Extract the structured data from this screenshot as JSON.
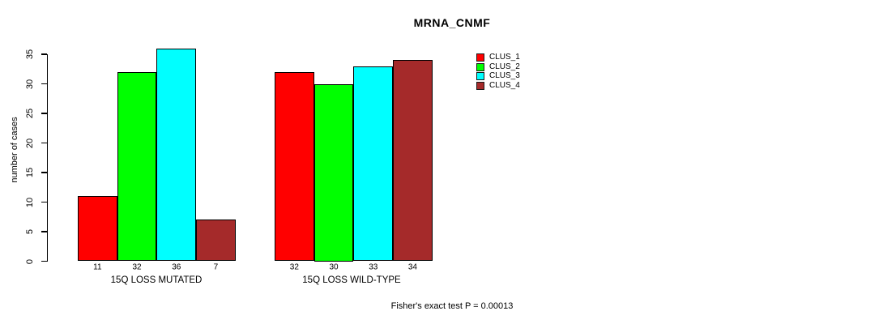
{
  "chart_data": {
    "type": "bar",
    "title": "MRNA_CNMF",
    "ylabel": "number of cases",
    "xlabel": "",
    "ylim": [
      0,
      36
    ],
    "yticks": [
      0,
      5,
      10,
      15,
      20,
      25,
      30,
      35
    ],
    "categories": [
      "15Q LOSS MUTATED",
      "15Q LOSS WILD-TYPE"
    ],
    "series": [
      {
        "name": "CLUS_1",
        "color": "#FF0000",
        "values": [
          11,
          32
        ]
      },
      {
        "name": "CLUS_2",
        "color": "#00FF00",
        "values": [
          32,
          30
        ]
      },
      {
        "name": "CLUS_3",
        "color": "#00FFFF",
        "values": [
          36,
          33
        ]
      },
      {
        "name": "CLUS_4",
        "color": "#A52A2A",
        "values": [
          7,
          34
        ]
      }
    ],
    "bar_value_labels": [
      [
        11,
        32,
        36,
        7
      ],
      [
        32,
        30,
        33,
        34
      ]
    ],
    "annotation": "Fisher's exact test P = 0.00013",
    "legend_position": "right",
    "grid": false,
    "axis_color": "#000000",
    "bar_border_color": "#000000",
    "background_color": "#ffffff"
  }
}
